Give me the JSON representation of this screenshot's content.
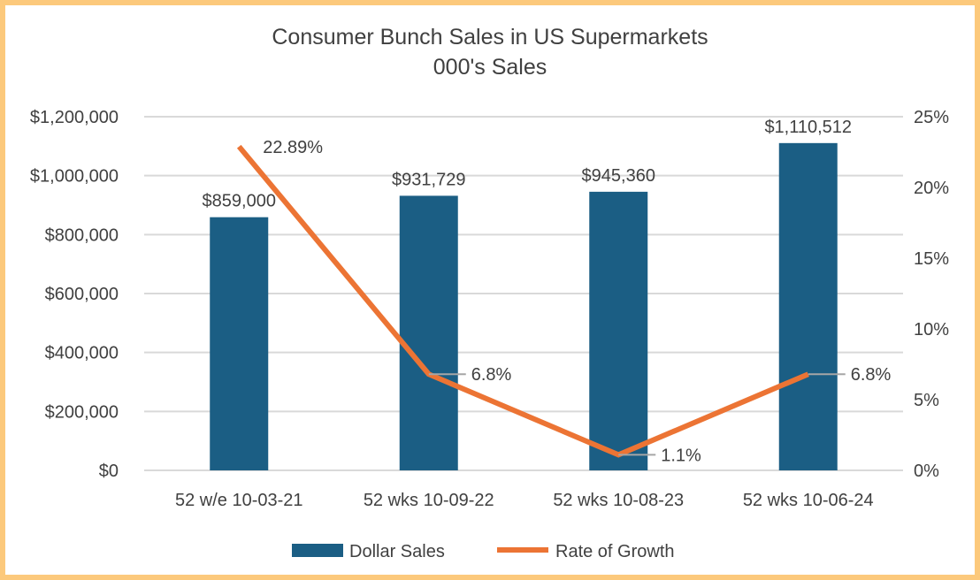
{
  "chart_data": {
    "type": "bar+line",
    "title": "Consumer Bunch Sales in US Supermarkets",
    "subtitle": "000's Sales",
    "categories": [
      "52 w/e 10-03-21",
      "52 wks 10-09-22",
      "52 wks 10-08-23",
      "52 wks 10-06-24"
    ],
    "series": [
      {
        "name": "Dollar Sales",
        "type": "bar",
        "axis": "left",
        "color": "#1b5e84",
        "values": [
          859000,
          931729,
          945360,
          1110512
        ],
        "labels": [
          "$859,000",
          "$931,729",
          "$945,360",
          "$1,110,512"
        ]
      },
      {
        "name": "Rate of Growth",
        "type": "line",
        "axis": "right",
        "color": "#ec7434",
        "values": [
          22.89,
          6.8,
          1.1,
          6.8
        ],
        "labels": [
          "22.89%",
          "6.8%",
          "1.1%",
          "6.8%"
        ]
      }
    ],
    "left_axis": {
      "ylim": [
        0,
        1200000
      ],
      "ticks": [
        "$0",
        "$200,000",
        "$400,000",
        "$600,000",
        "$800,000",
        "$1,000,000",
        "$1,200,000"
      ]
    },
    "right_axis": {
      "ylim": [
        0,
        25
      ],
      "ticks": [
        "0%",
        "5%",
        "10%",
        "15%",
        "20%",
        "25%"
      ]
    },
    "grid": true,
    "legend_position": "bottom",
    "border_color": "#fcc97c"
  }
}
